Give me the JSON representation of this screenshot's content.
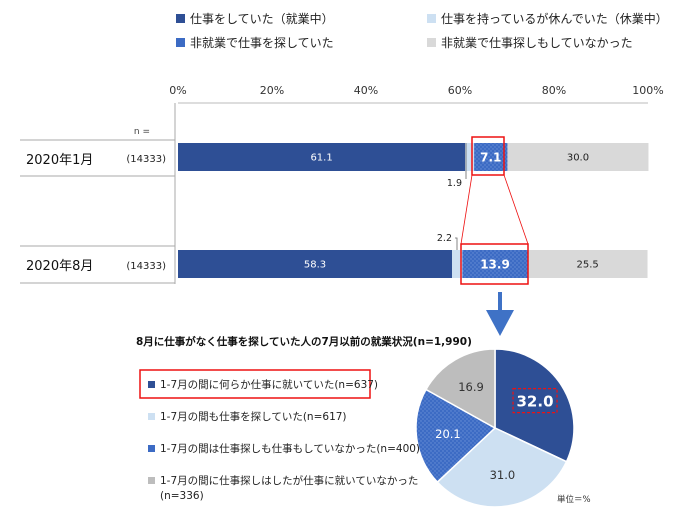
{
  "legend": [
    {
      "label": "仕事をしていた（就業中）",
      "color": "#2e4f95"
    },
    {
      "label": "仕事を持っているが休んでいた（休業中）",
      "color": "#cde0f2"
    },
    {
      "label": "非就業で仕事を探していた",
      "color": "#3c6bc4"
    },
    {
      "label": "非就業で仕事探しもしていなかった",
      "color": "#d9d9d9"
    }
  ],
  "n_header": "n =",
  "pie_title": "8月に仕事がなく仕事を探していた人の7月以前の就業状況(n=1,990)",
  "pie_unit": "単位＝%",
  "pie_legend": [
    "1-7月の間に何らか仕事に就いていた(n=637)",
    "1-7月の間も仕事を探していた(n=617)",
    "1-7月の間は仕事探しも仕事もしていなかった(n=400)",
    "1-7月の間に仕事探しはしたが仕事に就いていなかった",
    "(n=336)"
  ],
  "chart_data": [
    {
      "type": "bar",
      "orientation": "horizontal-stacked",
      "x_ticks": [
        "0%",
        "20%",
        "40%",
        "60%",
        "80%",
        "100%"
      ],
      "xlim": [
        0,
        100
      ],
      "categories": [
        "2020年1月",
        "2020年8月"
      ],
      "n_values": [
        "(14333)",
        "(14333)"
      ],
      "series": [
        {
          "name": "仕事をしていた（就業中）",
          "values": [
            61.1,
            58.3
          ],
          "color": "#2e4f95"
        },
        {
          "name": "仕事を持っているが休んでいた（休業中）",
          "values": [
            1.9,
            2.2
          ],
          "color": "#cde0f2"
        },
        {
          "name": "非就業で仕事を探していた",
          "values": [
            7.1,
            13.9
          ],
          "color": "#3c6bc4"
        },
        {
          "name": "非就業で仕事探しもしていなかった",
          "values": [
            30.0,
            25.5
          ],
          "color": "#d9d9d9"
        }
      ],
      "labels": [
        [
          "61.1",
          "1.9",
          "7.1",
          "30.0"
        ],
        [
          "58.3",
          "2.2",
          "13.9",
          "25.5"
        ]
      ]
    },
    {
      "type": "pie",
      "slices": [
        {
          "label": "1-7月の間に何らか仕事に就いていた(n=637)",
          "value": 32.0,
          "text": "32.0",
          "color": "#2e4f95"
        },
        {
          "label": "1-7月の間も仕事を探していた(n=617)",
          "value": 31.0,
          "text": "31.0",
          "color": "#cde0f2"
        },
        {
          "label": "1-7月の間は仕事探しも仕事もしていなかった(n=400)",
          "value": 20.1,
          "text": "20.1",
          "color": "#3c6bc4"
        },
        {
          "label": "1-7月の間に仕事探しはしたが仕事に就いていなかった(n=336)",
          "value": 16.9,
          "text": "16.9",
          "color": "#bdbdbd"
        }
      ]
    }
  ]
}
